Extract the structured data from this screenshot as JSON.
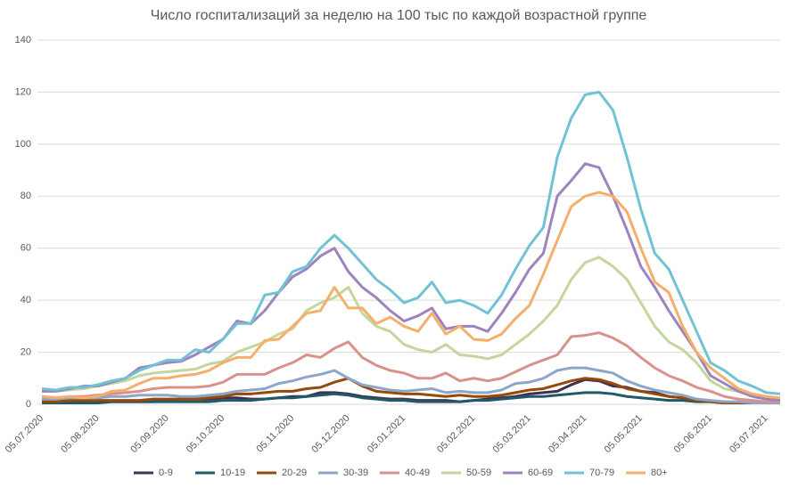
{
  "chart_data": {
    "type": "line",
    "title": "Число госпитализаций за неделю на 100 тыс по каждой возрастной группе",
    "categories": [
      "05.07.2020",
      null,
      null,
      null,
      "05.08.2020",
      null,
      null,
      null,
      null,
      "05.09.2020",
      null,
      null,
      null,
      "05.10.2020",
      null,
      null,
      null,
      null,
      "05.11.2020",
      null,
      null,
      null,
      "05.12.2020",
      null,
      null,
      null,
      "05.01.2021",
      null,
      null,
      null,
      null,
      "05.02.2021",
      null,
      null,
      null,
      "05.03.2021",
      null,
      null,
      null,
      "05.04.2021",
      null,
      null,
      null,
      "05.05.2021",
      null,
      null,
      null,
      null,
      "05.06.2021",
      null,
      null,
      null,
      "05.07.2021",
      null
    ],
    "ylim": [
      0,
      140
    ],
    "yticks": [
      0,
      20,
      40,
      60,
      80,
      100,
      120,
      140
    ],
    "grid": true,
    "legend": "bottom",
    "series": [
      {
        "name": "0-9",
        "color": "#403152",
        "values": [
          1,
          0.5,
          1,
          1,
          1,
          1,
          1,
          1,
          1,
          1.5,
          2,
          2,
          2,
          2.5,
          2.5,
          2,
          2,
          2.5,
          3,
          3,
          4.5,
          4.5,
          4,
          3,
          2.5,
          2,
          2,
          1.5,
          1.5,
          1.5,
          1,
          1.5,
          2,
          2.5,
          3,
          4,
          4.5,
          5,
          7.5,
          9.5,
          9,
          7,
          6.5,
          5,
          4.5,
          3,
          2.5,
          2,
          1,
          1,
          0.5,
          0.5,
          0.5,
          0.5
        ]
      },
      {
        "name": "10-19",
        "color": "#215968",
        "values": [
          0.5,
          0.5,
          0.5,
          0.5,
          0.5,
          1,
          1,
          1,
          1,
          1,
          1,
          1,
          1,
          1.5,
          1.5,
          1.5,
          2,
          2.5,
          2.5,
          3,
          3.5,
          4,
          3.5,
          2.5,
          2,
          1.5,
          1.5,
          1,
          1,
          1,
          1,
          1.5,
          1.5,
          2,
          2.5,
          3,
          3,
          3.5,
          4,
          4.5,
          4.5,
          4,
          3,
          2.5,
          2,
          1.5,
          1.5,
          1,
          1,
          0.5,
          0.5,
          0.5,
          0.5,
          0.5
        ]
      },
      {
        "name": "20-29",
        "color": "#984807",
        "values": [
          1,
          1,
          1.5,
          1.5,
          1.5,
          1.5,
          1.5,
          1.5,
          2,
          2,
          2,
          2,
          2.5,
          3,
          4,
          4,
          4.5,
          5,
          5,
          6,
          6.5,
          8.5,
          10,
          7,
          5,
          4.5,
          4,
          4,
          3.5,
          3,
          3.5,
          3,
          3,
          3.5,
          4.5,
          5.5,
          6,
          7.5,
          9,
          10,
          9.5,
          8,
          6,
          5,
          4,
          3,
          2.5,
          1.5,
          1,
          0.5,
          0.5,
          0.5,
          0.5,
          0.5
        ]
      },
      {
        "name": "30-39",
        "color": "#8BA6C9",
        "values": [
          2,
          2,
          2.5,
          2.5,
          2.5,
          3,
          3,
          3.5,
          3.5,
          3.5,
          3,
          3,
          3.5,
          4,
          5,
          5.5,
          6,
          8,
          9,
          10.5,
          11.5,
          13,
          10,
          7.5,
          6.5,
          5.5,
          5,
          5.5,
          6,
          4.5,
          5,
          4.5,
          4.5,
          5.5,
          8,
          8.5,
          10,
          13,
          14,
          14,
          13,
          12,
          9,
          7,
          5.5,
          4.5,
          3.5,
          2,
          1.5,
          1,
          1,
          0.5,
          0.5,
          0.5
        ]
      },
      {
        "name": "40-49",
        "color": "#D9918B",
        "values": [
          3,
          2.5,
          3,
          3,
          3.5,
          4,
          4.5,
          5,
          6,
          6.5,
          6.5,
          6.5,
          7,
          8.5,
          11.5,
          11.5,
          11.5,
          14,
          16,
          19,
          18,
          21.5,
          24,
          18,
          15,
          13,
          12,
          10,
          10,
          12,
          9,
          10,
          9,
          10,
          12.5,
          15,
          17,
          19,
          26,
          26.5,
          27.5,
          25.5,
          22.5,
          18,
          14,
          11,
          9,
          6.5,
          5,
          3,
          2,
          1.5,
          1,
          1
        ]
      },
      {
        "name": "50-59",
        "color": "#C3D69B",
        "values": [
          5,
          5,
          5.5,
          6,
          7,
          8,
          9,
          11,
          12,
          12.5,
          13,
          13.5,
          15.5,
          16.5,
          20,
          22,
          24,
          27,
          29,
          36,
          39,
          41,
          45,
          35,
          30,
          28,
          23,
          21,
          20,
          23,
          19,
          18.5,
          17.5,
          19,
          23,
          27,
          32,
          38,
          48,
          54.5,
          56.5,
          53,
          48,
          39,
          30,
          24,
          21,
          16,
          9,
          6,
          5,
          4,
          3,
          2.5
        ]
      },
      {
        "name": "60-69",
        "color": "#9E84BE",
        "values": [
          5,
          5,
          6,
          7,
          7,
          8.5,
          10,
          14,
          15,
          16,
          16.5,
          19,
          22,
          25,
          32,
          31,
          36,
          43,
          49,
          52,
          57,
          60,
          51,
          45,
          41,
          36,
          32,
          34,
          37,
          29,
          30,
          30,
          28,
          35,
          43,
          52,
          58,
          80,
          86,
          92.5,
          91,
          80,
          67,
          53,
          45,
          36,
          28,
          20,
          11,
          8,
          5,
          3,
          2,
          1.5
        ]
      },
      {
        "name": "70-79",
        "color": "#72C2D5",
        "values": [
          6,
          5.5,
          6.5,
          6.5,
          7.5,
          9,
          10,
          13,
          15,
          17,
          17,
          21,
          20,
          25,
          31,
          31,
          42,
          43,
          51,
          53,
          60,
          65,
          60,
          54,
          48,
          44,
          39,
          41,
          47,
          39,
          40,
          38,
          35,
          42,
          52,
          61,
          68,
          95,
          110,
          119,
          120,
          113,
          95,
          75,
          58,
          52,
          40,
          28,
          16,
          13,
          9,
          7,
          4.5,
          4
        ]
      },
      {
        "name": "80+",
        "color": "#F6AE6C",
        "values": [
          3,
          2.5,
          3,
          2.5,
          3,
          5,
          5.5,
          8,
          10,
          10,
          11,
          11.5,
          13,
          16,
          18,
          18,
          24.5,
          25,
          30,
          35,
          36,
          45,
          37,
          37,
          31,
          33.5,
          30,
          28,
          35,
          27,
          30,
          25,
          24.5,
          27,
          33,
          38,
          50,
          63,
          76,
          80,
          81.5,
          80,
          74,
          60,
          47,
          43,
          30,
          20,
          14,
          10,
          6,
          4,
          3,
          2.5
        ]
      }
    ]
  }
}
